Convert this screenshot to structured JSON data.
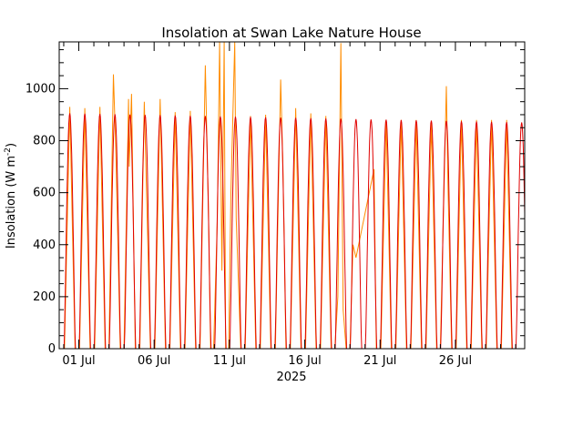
{
  "chart_data": {
    "type": "line",
    "title": "Insolation at Swan Lake Nature House",
    "ylabel": "Insolation (W m",
    "ylabel_superscript": "-2",
    "ylabel_close": ")",
    "xlabel_year": "2025",
    "ylim": [
      0,
      1180
    ],
    "xlim_days": [
      -1.3,
      29.6
    ],
    "y_ticks": [
      {
        "value": 0,
        "label": "0"
      },
      {
        "value": 200,
        "label": "200"
      },
      {
        "value": 400,
        "label": "400"
      },
      {
        "value": 600,
        "label": "600"
      },
      {
        "value": 800,
        "label": "800"
      },
      {
        "value": 1000,
        "label": "1000"
      }
    ],
    "x_ticks": [
      {
        "day": 0,
        "label": "01 Jul"
      },
      {
        "day": 5,
        "label": "06 Jul"
      },
      {
        "day": 10,
        "label": "11 Jul"
      },
      {
        "day": 15,
        "label": "16 Jul"
      },
      {
        "day": 20,
        "label": "21 Jul"
      },
      {
        "day": 25,
        "label": "26 Jul"
      }
    ],
    "series": [
      {
        "role": "measured",
        "color": "#ff8c00",
        "points": [
          [
            -1.3,
            0
          ],
          [
            -0.95,
            0
          ],
          [
            -0.6,
            930
          ],
          [
            -0.25,
            0
          ],
          [
            0.05,
            0
          ],
          [
            0.4,
            925
          ],
          [
            0.75,
            0
          ],
          [
            1.05,
            0
          ],
          [
            1.4,
            930
          ],
          [
            1.75,
            0
          ],
          [
            2.0,
            0
          ],
          [
            2.3,
            1055
          ],
          [
            2.45,
            780
          ],
          [
            2.75,
            0
          ],
          [
            3.0,
            0
          ],
          [
            3.3,
            960
          ],
          [
            3.35,
            700
          ],
          [
            3.5,
            980
          ],
          [
            3.75,
            0
          ],
          [
            4.05,
            0
          ],
          [
            4.35,
            950
          ],
          [
            4.75,
            0
          ],
          [
            5.05,
            0
          ],
          [
            5.4,
            960
          ],
          [
            5.75,
            0
          ],
          [
            6.05,
            0
          ],
          [
            6.4,
            910
          ],
          [
            6.75,
            0
          ],
          [
            7.05,
            0
          ],
          [
            7.4,
            915
          ],
          [
            7.75,
            0
          ],
          [
            8.05,
            0
          ],
          [
            8.4,
            1090
          ],
          [
            8.6,
            550
          ],
          [
            8.75,
            0
          ],
          [
            8.95,
            0
          ],
          [
            9.2,
            500
          ],
          [
            9.35,
            1180
          ],
          [
            9.5,
            300
          ],
          [
            9.65,
            1180
          ],
          [
            9.75,
            0
          ],
          [
            9.95,
            0
          ],
          [
            10.1,
            600
          ],
          [
            10.35,
            1180
          ],
          [
            10.45,
            500
          ],
          [
            10.75,
            0
          ],
          [
            11.05,
            0
          ],
          [
            11.4,
            895
          ],
          [
            11.75,
            0
          ],
          [
            12.05,
            0
          ],
          [
            12.4,
            900
          ],
          [
            12.75,
            0
          ],
          [
            13.05,
            0
          ],
          [
            13.4,
            1035
          ],
          [
            13.55,
            700
          ],
          [
            13.75,
            0
          ],
          [
            14.05,
            0
          ],
          [
            14.4,
            925
          ],
          [
            14.75,
            0
          ],
          [
            15.05,
            0
          ],
          [
            15.4,
            905
          ],
          [
            15.75,
            0
          ],
          [
            16.05,
            0
          ],
          [
            16.4,
            895
          ],
          [
            16.75,
            0
          ],
          [
            17.0,
            0
          ],
          [
            17.2,
            200
          ],
          [
            17.4,
            1175
          ],
          [
            17.55,
            150
          ],
          [
            17.75,
            0
          ],
          [
            18.0,
            0
          ],
          [
            18.2,
            400
          ],
          [
            18.4,
            350
          ],
          [
            19.6,
            690
          ],
          [
            19.75,
            0
          ],
          [
            20.05,
            0
          ],
          [
            20.4,
            880
          ],
          [
            20.75,
            0
          ],
          [
            21.05,
            0
          ],
          [
            21.4,
            880
          ],
          [
            21.75,
            0
          ],
          [
            22.05,
            0
          ],
          [
            22.4,
            880
          ],
          [
            22.75,
            0
          ],
          [
            23.05,
            0
          ],
          [
            23.4,
            870
          ],
          [
            23.75,
            0
          ],
          [
            24.0,
            0
          ],
          [
            24.4,
            1010
          ],
          [
            24.5,
            640
          ],
          [
            24.75,
            0
          ],
          [
            25.05,
            0
          ],
          [
            25.4,
            880
          ],
          [
            25.75,
            0
          ],
          [
            26.05,
            0
          ],
          [
            26.4,
            880
          ],
          [
            26.75,
            0
          ],
          [
            27.05,
            0
          ],
          [
            27.4,
            880
          ],
          [
            27.75,
            0
          ],
          [
            28.05,
            0
          ],
          [
            28.4,
            880
          ],
          [
            28.75,
            0
          ],
          [
            29.0,
            0
          ],
          [
            29.6,
            0
          ]
        ]
      },
      {
        "role": "clear-sky",
        "color": "#e00000",
        "peak_first": 905,
        "peak_last": 870,
        "period_days": 1.0,
        "first_peak_day": -0.6,
        "half_width_days": 0.38,
        "count": 31
      }
    ]
  }
}
